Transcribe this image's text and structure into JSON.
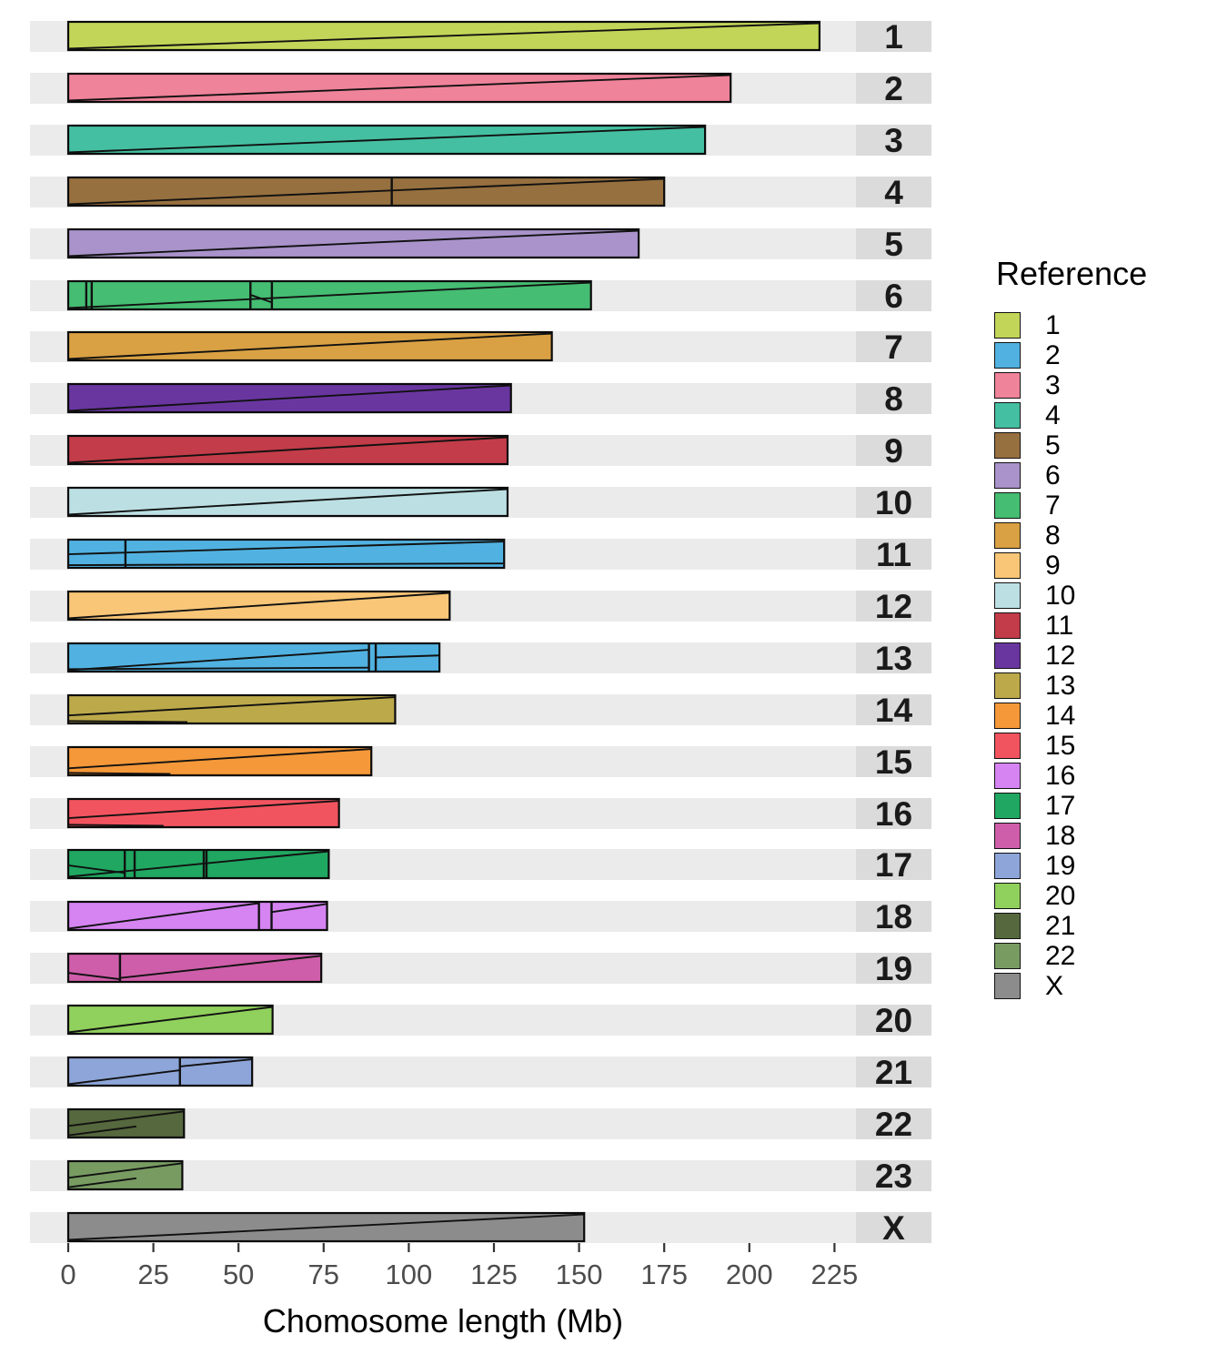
{
  "panel": {
    "band_color": "#EBEBEB",
    "strip_color": "#DBDBDB",
    "bar_outline_color": "#0A0A0A"
  },
  "axis": {
    "title": "Chomosome length (Mb)",
    "tick_labels": [
      "0",
      "25",
      "50",
      "75",
      "100",
      "125",
      "150",
      "175",
      "200",
      "225"
    ],
    "tick_values": [
      0,
      25,
      50,
      75,
      100,
      125,
      150,
      175,
      200,
      225
    ],
    "tick_color": "#4D4D4D"
  },
  "legend": {
    "title": "Reference",
    "entries": [
      {
        "label": "1",
        "color": "#C3D558"
      },
      {
        "label": "2",
        "color": "#51B2E1"
      },
      {
        "label": "3",
        "color": "#EF8399"
      },
      {
        "label": "4",
        "color": "#44BFA2"
      },
      {
        "label": "5",
        "color": "#97703F"
      },
      {
        "label": "6",
        "color": "#A993CA"
      },
      {
        "label": "7",
        "color": "#45BD72"
      },
      {
        "label": "8",
        "color": "#D9A143"
      },
      {
        "label": "9",
        "color": "#F9C677"
      },
      {
        "label": "10",
        "color": "#BCDFE3"
      },
      {
        "label": "11",
        "color": "#C33C49"
      },
      {
        "label": "12",
        "color": "#6936A0"
      },
      {
        "label": "13",
        "color": "#BCA94A"
      },
      {
        "label": "14",
        "color": "#F49839"
      },
      {
        "label": "15",
        "color": "#F2545F"
      },
      {
        "label": "16",
        "color": "#D584F2"
      },
      {
        "label": "17",
        "color": "#20A761"
      },
      {
        "label": "18",
        "color": "#CE5EA9"
      },
      {
        "label": "19",
        "color": "#8DA5D8"
      },
      {
        "label": "20",
        "color": "#90D05C"
      },
      {
        "label": "21",
        "color": "#56683D"
      },
      {
        "label": "22",
        "color": "#789B62"
      },
      {
        "label": "X",
        "color": "#8C8C8C"
      }
    ]
  },
  "chart_data": {
    "type": "bar",
    "orientation": "horizontal",
    "xlabel": "Chomosome length (Mb)",
    "ylabel": "",
    "xlim": [
      0,
      240
    ],
    "x_ticks": [
      0,
      25,
      50,
      75,
      100,
      125,
      150,
      175,
      200,
      225
    ],
    "grid": false,
    "legend_position": "right",
    "facet_labels_position": "right",
    "rows": [
      {
        "chromosome": "1",
        "reference": "1",
        "length_mb": 220.6,
        "dividers_mb": [],
        "inner_lines": [
          [
            0,
            1,
            220.6,
            0
          ]
        ]
      },
      {
        "chromosome": "2",
        "reference": "3",
        "length_mb": 194.5,
        "dividers_mb": [],
        "inner_lines": [
          [
            0,
            1,
            194.5,
            0
          ]
        ]
      },
      {
        "chromosome": "3",
        "reference": "4",
        "length_mb": 187.0,
        "dividers_mb": [],
        "inner_lines": [
          [
            0,
            1,
            187,
            0
          ]
        ]
      },
      {
        "chromosome": "4",
        "reference": "5",
        "length_mb": 175.0,
        "dividers_mb": [
          95
        ],
        "inner_lines": [
          [
            0,
            1,
            175,
            0
          ]
        ]
      },
      {
        "chromosome": "5",
        "reference": "6",
        "length_mb": 167.5,
        "dividers_mb": [],
        "inner_lines": [
          [
            0,
            1,
            167.5,
            0
          ]
        ]
      },
      {
        "chromosome": "6",
        "reference": "7",
        "length_mb": 153.5,
        "dividers_mb": [
          5.3,
          6.9,
          53.5,
          59.8
        ],
        "inner_lines": [
          [
            0,
            1,
            153.5,
            0
          ],
          [
            53.5,
            0.48,
            59.8,
            0.78
          ]
        ]
      },
      {
        "chromosome": "7",
        "reference": "8",
        "length_mb": 142.0,
        "dividers_mb": [],
        "inner_lines": [
          [
            0,
            1,
            142,
            0
          ]
        ]
      },
      {
        "chromosome": "8",
        "reference": "12",
        "length_mb": 130.0,
        "dividers_mb": [],
        "inner_lines": [
          [
            0,
            1,
            130,
            0
          ]
        ]
      },
      {
        "chromosome": "9",
        "reference": "11",
        "length_mb": 129.0,
        "dividers_mb": [],
        "inner_lines": [
          [
            0,
            1,
            129,
            0
          ]
        ]
      },
      {
        "chromosome": "10",
        "reference": "10",
        "length_mb": 129.0,
        "dividers_mb": [],
        "inner_lines": [
          [
            0,
            1,
            129,
            0
          ]
        ]
      },
      {
        "chromosome": "11",
        "reference": "2",
        "length_mb": 128.0,
        "dividers_mb": [
          16.8
        ],
        "inner_lines": [
          [
            0,
            0.52,
            128,
            0.02
          ],
          [
            0,
            0.95,
            128,
            0.88
          ]
        ]
      },
      {
        "chromosome": "12",
        "reference": "9",
        "length_mb": 112.0,
        "dividers_mb": [],
        "inner_lines": [
          [
            0,
            1,
            112,
            0
          ]
        ]
      },
      {
        "chromosome": "13",
        "reference": "2",
        "length_mb": 109.0,
        "dividers_mb": [
          88.3,
          90.3
        ],
        "inner_lines": [
          [
            0,
            1,
            88.3,
            0.2
          ],
          [
            90.3,
            0.5,
            109,
            0.42
          ],
          [
            0,
            0.96,
            88.3,
            0.9
          ]
        ]
      },
      {
        "chromosome": "14",
        "reference": "13",
        "length_mb": 96.0,
        "dividers_mb": [],
        "inner_lines": [
          [
            0,
            0.74,
            96,
            0.02
          ],
          [
            0,
            0.96,
            35,
            1
          ]
        ]
      },
      {
        "chromosome": "15",
        "reference": "14",
        "length_mb": 89.0,
        "dividers_mb": [],
        "inner_lines": [
          [
            0,
            0.78,
            89,
            0.02
          ],
          [
            0,
            0.96,
            30,
            1
          ]
        ]
      },
      {
        "chromosome": "16",
        "reference": "15",
        "length_mb": 79.5,
        "dividers_mb": [],
        "inner_lines": [
          [
            0,
            0.7,
            79.5,
            0.02
          ],
          [
            0,
            0.96,
            28,
            1
          ]
        ]
      },
      {
        "chromosome": "17",
        "reference": "17",
        "length_mb": 76.5,
        "dividers_mb": [
          16.6,
          19.5,
          39.8,
          40.6
        ],
        "inner_lines": [
          [
            0,
            1,
            76.5,
            0
          ],
          [
            0,
            0.55,
            16.6,
            0.85
          ]
        ]
      },
      {
        "chromosome": "18",
        "reference": "16",
        "length_mb": 76.0,
        "dividers_mb": [
          56,
          59.7
        ],
        "inner_lines": [
          [
            0,
            1,
            56,
            0
          ],
          [
            59.7,
            0.35,
            76,
            0.03
          ]
        ]
      },
      {
        "chromosome": "19",
        "reference": "18",
        "length_mb": 74.3,
        "dividers_mb": [
          15.2
        ],
        "inner_lines": [
          [
            0,
            0.7,
            15.2,
            0.95
          ],
          [
            15.2,
            0.9,
            74.3,
            0.03
          ]
        ]
      },
      {
        "chromosome": "20",
        "reference": "20",
        "length_mb": 60.0,
        "dividers_mb": [],
        "inner_lines": [
          [
            0,
            1,
            60,
            0
          ]
        ]
      },
      {
        "chromosome": "21",
        "reference": "19",
        "length_mb": 54.0,
        "dividers_mb": [
          32.8
        ],
        "inner_lines": [
          [
            0,
            1,
            32.8,
            0.45
          ],
          [
            32.8,
            0.3,
            54,
            0.02
          ]
        ]
      },
      {
        "chromosome": "22",
        "reference": "21",
        "length_mb": 34.0,
        "dividers_mb": [],
        "inner_lines": [
          [
            0,
            0.6,
            34,
            0.03
          ],
          [
            0,
            0.97,
            20,
            0.62
          ]
        ]
      },
      {
        "chromosome": "23",
        "reference": "22",
        "length_mb": 33.5,
        "dividers_mb": [],
        "inner_lines": [
          [
            0,
            0.6,
            33.5,
            0.03
          ],
          [
            0,
            0.97,
            20,
            0.62
          ]
        ]
      },
      {
        "chromosome": "X",
        "reference": "X",
        "length_mb": 151.5,
        "dividers_mb": [],
        "inner_lines": [
          [
            0,
            1,
            151.5,
            0
          ]
        ]
      }
    ]
  }
}
